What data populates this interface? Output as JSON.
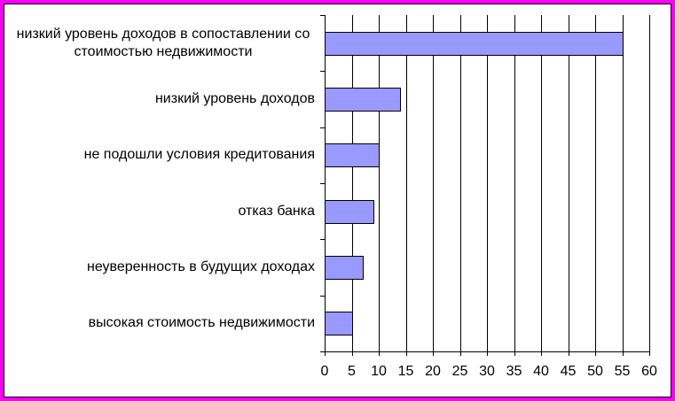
{
  "colors": {
    "frame": "#FF00FF",
    "background": "#FFFFFF",
    "bar": "#9999FF",
    "bar_outline": "#000000",
    "grid": "#000000"
  },
  "chart_data": {
    "type": "bar",
    "orientation": "horizontal",
    "categories": [
      "низкий уровень доходов в сопоставлении со стоимостью недвижимости",
      "низкий уровень доходов",
      "не подошли условия кредитования",
      "отказ банка",
      "неуверенность в будущих доходах",
      "высокая стоимость недвижимости"
    ],
    "values": [
      55,
      14,
      10,
      9,
      7,
      5
    ],
    "xlim": [
      0,
      60
    ],
    "xticks": [
      0,
      5,
      10,
      15,
      20,
      25,
      30,
      35,
      40,
      45,
      50,
      55,
      60
    ],
    "grid": "vertical",
    "legend": "none"
  }
}
